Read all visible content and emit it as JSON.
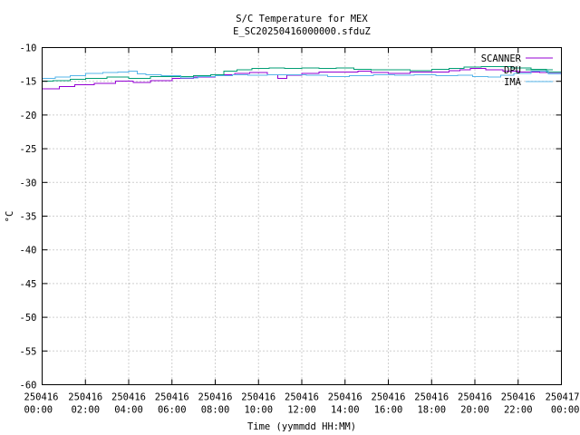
{
  "chart_data": {
    "type": "line",
    "title": "S/C Temperature for MEX",
    "subtitle": "E_SC20250416000000.sfduZ",
    "xlabel": "Time (yymmdd HH:MM)",
    "ylabel": "°C",
    "xlim": [
      0,
      24
    ],
    "ylim": [
      -60,
      -10
    ],
    "yticks": [
      -10,
      -15,
      -20,
      -25,
      -30,
      -35,
      -40,
      -45,
      -50,
      -55,
      -60
    ],
    "xticks": [
      {
        "v": 0,
        "l1": "250416",
        "l2": "00:00"
      },
      {
        "v": 2,
        "l1": "250416",
        "l2": "02:00"
      },
      {
        "v": 4,
        "l1": "250416",
        "l2": "04:00"
      },
      {
        "v": 6,
        "l1": "250416",
        "l2": "06:00"
      },
      {
        "v": 8,
        "l1": "250416",
        "l2": "08:00"
      },
      {
        "v": 10,
        "l1": "250416",
        "l2": "10:00"
      },
      {
        "v": 12,
        "l1": "250416",
        "l2": "12:00"
      },
      {
        "v": 14,
        "l1": "250416",
        "l2": "14:00"
      },
      {
        "v": 16,
        "l1": "250416",
        "l2": "16:00"
      },
      {
        "v": 18,
        "l1": "250416",
        "l2": "18:00"
      },
      {
        "v": 20,
        "l1": "250416",
        "l2": "20:00"
      },
      {
        "v": 22,
        "l1": "250416",
        "l2": "22:00"
      },
      {
        "v": 24,
        "l1": "250417",
        "l2": "00:00"
      }
    ],
    "grid": true,
    "legend": "top-right",
    "series": [
      {
        "name": "SCANNER",
        "color": "#9400d3",
        "x": [
          0.0,
          0.8,
          1.5,
          2.4,
          3.4,
          4.2,
          5.0,
          6.0,
          7.0,
          8.0,
          8.9,
          9.6,
          10.4,
          10.9,
          11.3,
          12.0,
          12.8,
          13.9,
          14.6,
          15.2,
          16.0,
          17.0,
          18.0,
          18.8,
          19.3,
          19.8,
          20.5,
          21.3,
          22.0,
          23.0,
          24.0
        ],
        "y": [
          -16.1,
          -15.8,
          -15.5,
          -15.3,
          -15.0,
          -15.2,
          -14.9,
          -14.6,
          -14.4,
          -14.0,
          -13.8,
          -13.7,
          -14.0,
          -14.6,
          -14.1,
          -13.8,
          -13.6,
          -13.6,
          -13.5,
          -13.7,
          -13.8,
          -13.6,
          -13.6,
          -13.4,
          -13.3,
          -13.1,
          -13.3,
          -13.5,
          -13.6,
          -13.7,
          -13.8
        ]
      },
      {
        "name": "DPU",
        "color": "#009e73",
        "x": [
          0.0,
          0.5,
          1.3,
          2.0,
          3.0,
          4.0,
          5.0,
          6.0,
          7.0,
          7.8,
          8.4,
          9.0,
          9.7,
          10.5,
          11.2,
          12.0,
          12.8,
          13.6,
          14.4,
          15.2,
          16.0,
          17.0,
          18.0,
          18.8,
          19.5,
          20.3,
          21.0,
          21.7,
          22.6,
          23.3,
          24.0
        ],
        "y": [
          -15.0,
          -14.9,
          -14.7,
          -14.6,
          -14.4,
          -14.6,
          -14.3,
          -14.3,
          -14.2,
          -14.0,
          -13.5,
          -13.3,
          -13.1,
          -13.0,
          -13.1,
          -13.0,
          -13.1,
          -13.0,
          -13.2,
          -13.3,
          -13.3,
          -13.4,
          -13.2,
          -13.1,
          -12.9,
          -12.8,
          -12.8,
          -13.0,
          -13.2,
          -13.6,
          -14.8
        ]
      },
      {
        "name": "IMA",
        "color": "#56b4e9",
        "x": [
          0.0,
          0.6,
          1.3,
          2.0,
          2.8,
          3.5,
          4.0,
          4.4,
          4.8,
          5.5,
          6.4,
          7.2,
          8.0,
          8.8,
          9.5,
          10.4,
          11.3,
          12.2,
          13.2,
          14.2,
          15.3,
          16.3,
          17.2,
          18.2,
          19.2,
          19.9,
          20.6,
          21.2,
          21.8,
          22.6,
          23.4,
          24.0
        ],
        "y": [
          -14.6,
          -14.4,
          -14.2,
          -13.8,
          -13.7,
          -13.6,
          -13.5,
          -13.9,
          -14.0,
          -14.2,
          -14.5,
          -14.3,
          -14.2,
          -14.0,
          -14.1,
          -14.0,
          -14.0,
          -14.1,
          -14.3,
          -14.2,
          -14.0,
          -14.1,
          -14.0,
          -14.2,
          -14.1,
          -14.3,
          -14.4,
          -14.1,
          -13.8,
          -13.5,
          -13.9,
          -14.1
        ]
      }
    ]
  }
}
